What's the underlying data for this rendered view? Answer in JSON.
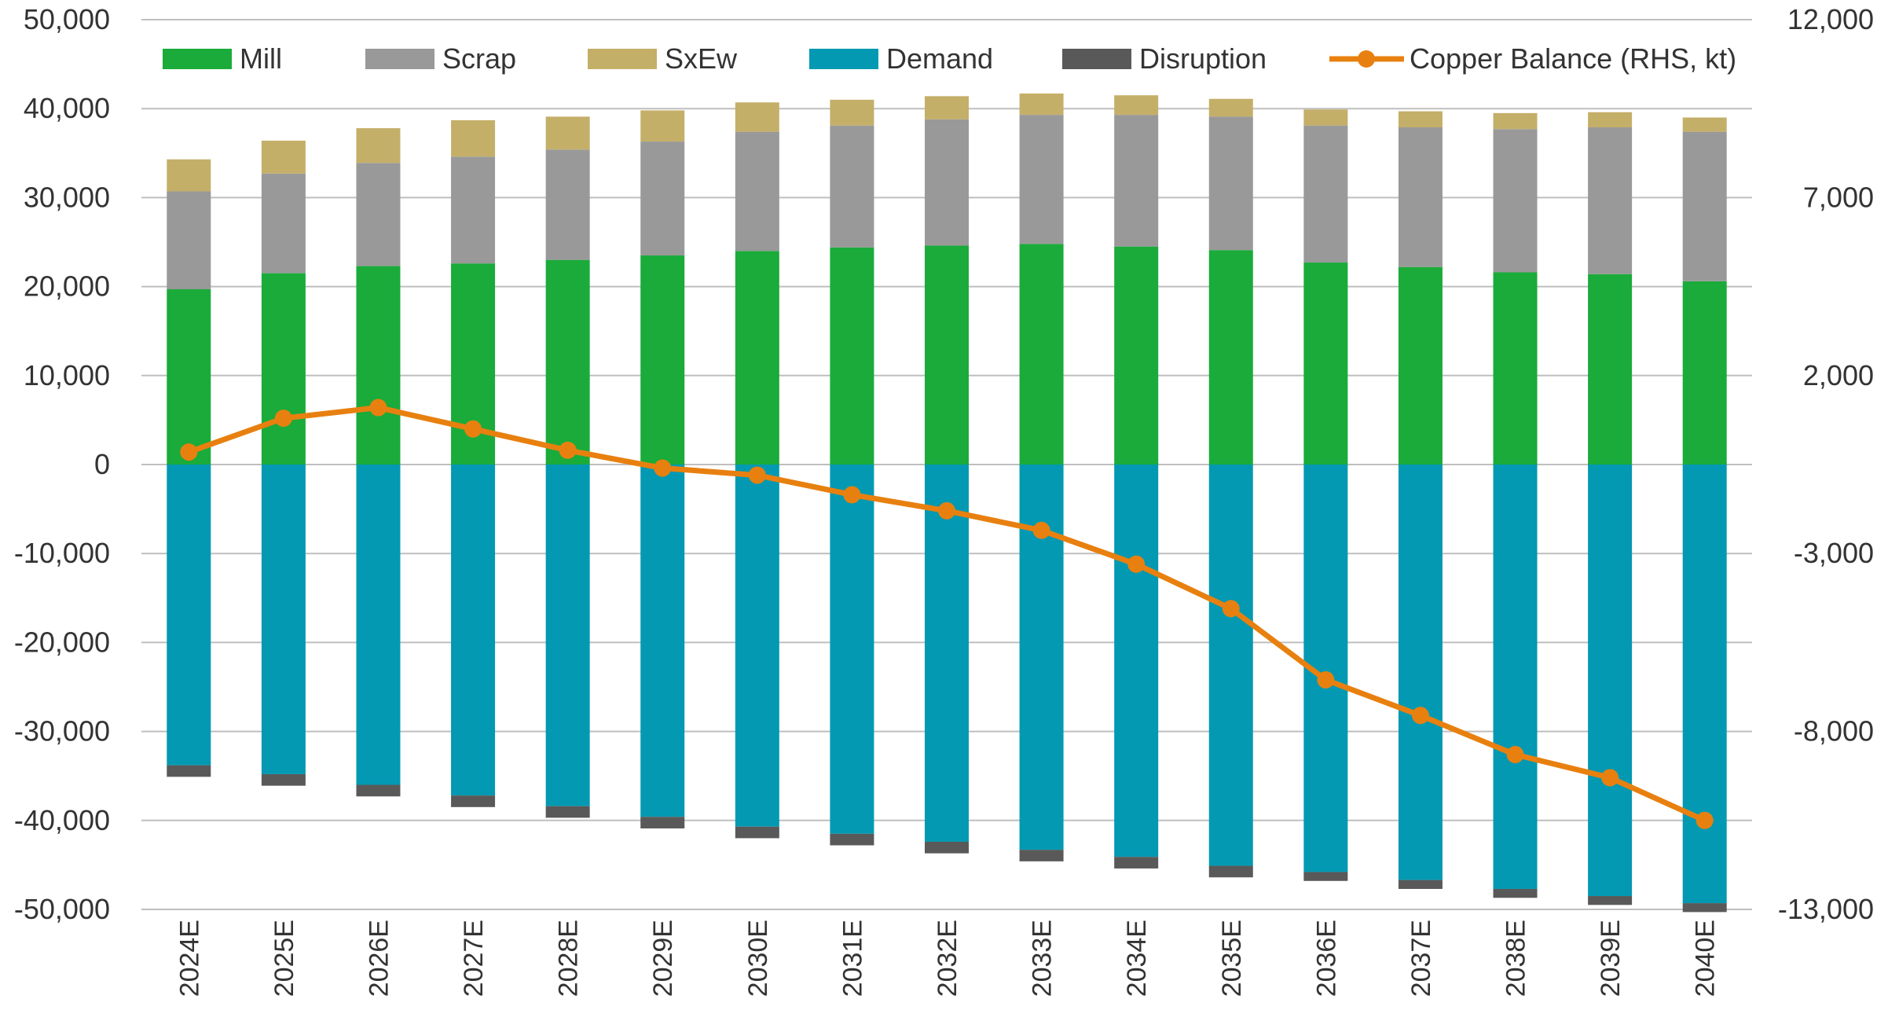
{
  "chart_data": {
    "type": "bar",
    "subtype": "stacked-bar-with-line",
    "categories": [
      "2024E",
      "2025E",
      "2026E",
      "2027E",
      "2028E",
      "2029E",
      "2030E",
      "2031E",
      "2032E",
      "2033E",
      "2034E",
      "2035E",
      "2036E",
      "2037E",
      "2038E",
      "2039E",
      "2040E"
    ],
    "series": [
      {
        "name": "Mill",
        "axis": "left",
        "color": "#1aab3a",
        "values": [
          19700,
          21500,
          22300,
          22600,
          23000,
          23500,
          24000,
          24400,
          24600,
          24800,
          24500,
          24100,
          22700,
          22200,
          21600,
          21400,
          20600
        ]
      },
      {
        "name": "Scrap",
        "axis": "left",
        "color": "#999999",
        "values": [
          11000,
          11200,
          11600,
          12000,
          12400,
          12800,
          13400,
          13700,
          14200,
          14500,
          14800,
          15000,
          15400,
          15700,
          16100,
          16500,
          16800
        ]
      },
      {
        "name": "SxEw",
        "axis": "left",
        "color": "#c4af69",
        "values": [
          3600,
          3700,
          3900,
          4100,
          3700,
          3500,
          3300,
          2900,
          2600,
          2400,
          2200,
          2000,
          1800,
          1800,
          1800,
          1700,
          1600
        ]
      },
      {
        "name": "Demand",
        "axis": "left",
        "color": "#0399b2",
        "values": [
          -33800,
          -34800,
          -36000,
          -37200,
          -38400,
          -39600,
          -40700,
          -41500,
          -42400,
          -43300,
          -44100,
          -45100,
          -45800,
          -46700,
          -47700,
          -48500,
          -49300
        ]
      },
      {
        "name": "Disruption",
        "axis": "left",
        "color": "#595959",
        "values": [
          -1300,
          -1300,
          -1300,
          -1300,
          -1300,
          -1300,
          -1300,
          -1300,
          -1300,
          -1300,
          -1300,
          -1300,
          -1000,
          -1000,
          -1000,
          -1000,
          -1000
        ]
      },
      {
        "name": "Copper Balance (RHS, kt)",
        "axis": "right",
        "type": "line",
        "color": "#e8800f",
        "values": [
          -150,
          800,
          1100,
          500,
          -100,
          -600,
          -800,
          -1350,
          -1800,
          -2350,
          -3300,
          -4550,
          -6550,
          -7550,
          -8650,
          -9300,
          -10500
        ]
      }
    ],
    "yAxisLeft": {
      "min": -50000,
      "max": 50000,
      "ticks": [
        50000,
        40000,
        30000,
        20000,
        10000,
        0,
        -10000,
        -20000,
        -30000,
        -40000,
        -50000
      ],
      "tick_labels": [
        "50,000",
        "40,000",
        "30,000",
        "20,000",
        "10,000",
        "0",
        "-10,000",
        "-20,000",
        "-30,000",
        "-40,000",
        "-50,000"
      ]
    },
    "yAxisRight": {
      "min": -13000,
      "max": 12000,
      "ticks": [
        12000,
        7000,
        2000,
        -3000,
        -8000,
        -13000
      ],
      "tick_labels": [
        "12,000",
        "7,000",
        "2,000",
        "-3,000",
        "-8,000",
        "-13,000"
      ]
    },
    "grid": "horizontal",
    "legend": "top",
    "title": "",
    "xlabel": "",
    "ylabel": ""
  }
}
